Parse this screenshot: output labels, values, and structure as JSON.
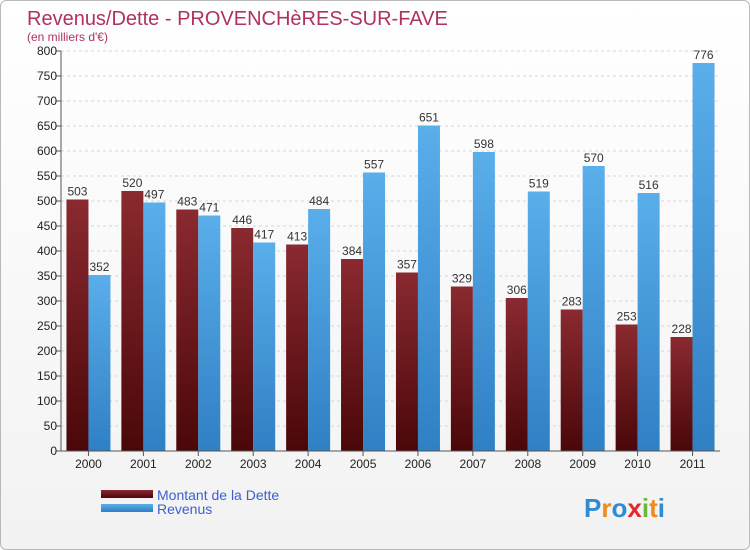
{
  "chart_data": {
    "type": "bar",
    "title": "Revenus/Dette - PROVENCHèRES-SUR-FAVE",
    "subtitle": "(en milliers d'€)",
    "categories": [
      "2000",
      "2001",
      "2002",
      "2003",
      "2004",
      "2005",
      "2006",
      "2007",
      "2008",
      "2009",
      "2010",
      "2011"
    ],
    "series": [
      {
        "name": "Montant de la Dette",
        "color": "#6e1217",
        "values": [
          503,
          520,
          483,
          446,
          413,
          384,
          357,
          329,
          306,
          283,
          253,
          228
        ]
      },
      {
        "name": "Revenus",
        "color": "#3f9ade",
        "values": [
          352,
          497,
          471,
          417,
          484,
          557,
          651,
          598,
          519,
          570,
          516,
          776
        ]
      }
    ],
    "ylim": [
      0,
      800
    ],
    "yticks": [
      0,
      50,
      100,
      150,
      200,
      250,
      300,
      350,
      400,
      450,
      500,
      550,
      600,
      650,
      700,
      750,
      800
    ],
    "grid": true,
    "legend": "bottom-left"
  },
  "logo": {
    "text": "Proxiti",
    "letters": [
      "P",
      "r",
      "o",
      "x",
      "i",
      "t",
      "i"
    ],
    "colors": [
      "#2f8bd6",
      "#f08a1d",
      "#2f8bd6",
      "#e3262f",
      "#6ab93d",
      "#f08a1d",
      "#2f8bd6"
    ]
  }
}
